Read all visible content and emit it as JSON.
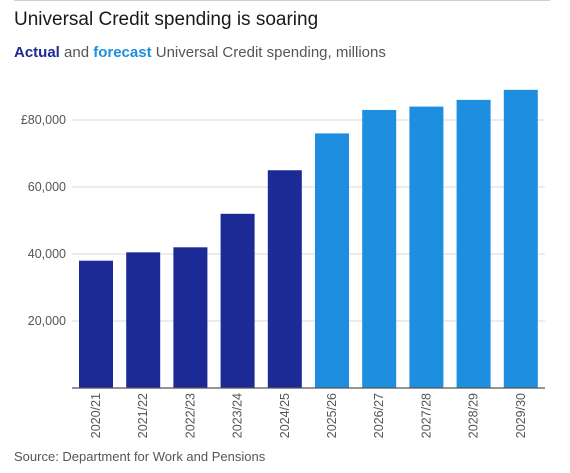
{
  "header": {
    "title": "Universal Credit spending is soaring",
    "subtitle_actual": "Actual",
    "subtitle_and": " and ",
    "subtitle_forecast": "forecast",
    "subtitle_rest": " Universal Credit spending, millions"
  },
  "colors": {
    "actual": "#1c2a96",
    "forecast": "#1e8fe0",
    "grid": "#d9d9d9",
    "axis": "#555555"
  },
  "chart_data": {
    "type": "bar",
    "title": "Universal Credit spending is soaring",
    "subtitle": "Actual and forecast Universal Credit spending, millions",
    "categories": [
      "2020/21",
      "2021/22",
      "2022/23",
      "2023/24",
      "2024/25",
      "2025/26",
      "2026/27",
      "2027/28",
      "2028/29",
      "2029/30"
    ],
    "values": [
      38000,
      40500,
      42000,
      52000,
      65000,
      76000,
      83000,
      84000,
      86000,
      89000
    ],
    "status": [
      "actual",
      "actual",
      "actual",
      "actual",
      "actual",
      "forecast",
      "forecast",
      "forecast",
      "forecast",
      "forecast"
    ],
    "yticks": [
      20000,
      40000,
      60000,
      80000
    ],
    "ytick_labels": [
      "20,000",
      "40,000",
      "60,000",
      "£80,000"
    ],
    "ylim": [
      0,
      90000
    ],
    "grid": true,
    "xlabel": "",
    "ylabel": ""
  },
  "footer": {
    "source": "Source: Department for Work and Pensions"
  }
}
